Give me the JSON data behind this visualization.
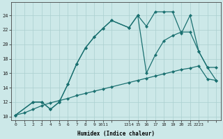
{
  "xlabel": "Humidex (Indice chaleur)",
  "background_color": "#cce8e8",
  "grid_color": "#aacfcf",
  "line_color": "#1a7070",
  "xlim": [
    -0.5,
    23.5
  ],
  "ylim": [
    9.5,
    25.8
  ],
  "yticks": [
    10,
    12,
    14,
    16,
    18,
    20,
    22,
    24
  ],
  "xtick_positions": [
    0,
    1,
    2,
    3,
    4,
    5,
    6,
    7,
    8,
    9,
    10,
    11,
    13,
    14,
    15,
    16,
    17,
    18,
    19,
    20,
    21,
    22,
    23
  ],
  "xtick_labels": [
    "0",
    "1",
    "2",
    "3",
    "4",
    "5",
    "6",
    "7",
    "8",
    "9",
    "1011",
    "",
    "1314",
    "15",
    "16",
    "17",
    "18",
    "19",
    "20",
    "21",
    "2223",
    "",
    ""
  ],
  "line1_x": [
    0,
    1,
    2,
    3,
    4,
    5,
    6,
    7,
    8,
    9,
    10,
    11,
    13,
    14,
    15,
    16,
    17,
    18,
    19,
    20,
    21,
    22,
    23
  ],
  "line1_y": [
    10.2,
    10.5,
    11.0,
    11.5,
    11.9,
    12.2,
    12.5,
    12.9,
    13.2,
    13.5,
    13.8,
    14.1,
    14.7,
    15.0,
    15.3,
    15.6,
    15.9,
    16.2,
    16.5,
    16.7,
    17.0,
    15.2,
    15.0
  ],
  "line2_x": [
    0,
    2,
    3,
    4,
    5,
    6,
    7,
    8,
    9,
    10,
    11,
    13,
    14,
    15,
    16,
    17,
    18,
    19,
    20,
    21,
    22,
    23
  ],
  "line2_y": [
    10.2,
    12.0,
    12.0,
    11.0,
    12.0,
    14.5,
    17.3,
    19.5,
    21.0,
    22.2,
    23.3,
    22.3,
    24.0,
    22.5,
    24.5,
    24.5,
    24.5,
    21.5,
    24.0,
    19.0,
    16.8,
    15.0
  ],
  "line3_x": [
    0,
    2,
    3,
    4,
    5,
    6,
    7,
    8,
    9,
    10,
    11,
    13,
    14,
    15,
    16,
    17,
    18,
    19,
    20,
    21,
    22,
    23
  ],
  "line3_y": [
    10.2,
    12.0,
    12.0,
    11.0,
    12.0,
    14.5,
    17.3,
    19.5,
    21.0,
    22.2,
    23.3,
    22.3,
    24.0,
    16.0,
    18.5,
    20.5,
    21.2,
    21.7,
    21.7,
    19.0,
    16.8,
    16.8
  ]
}
